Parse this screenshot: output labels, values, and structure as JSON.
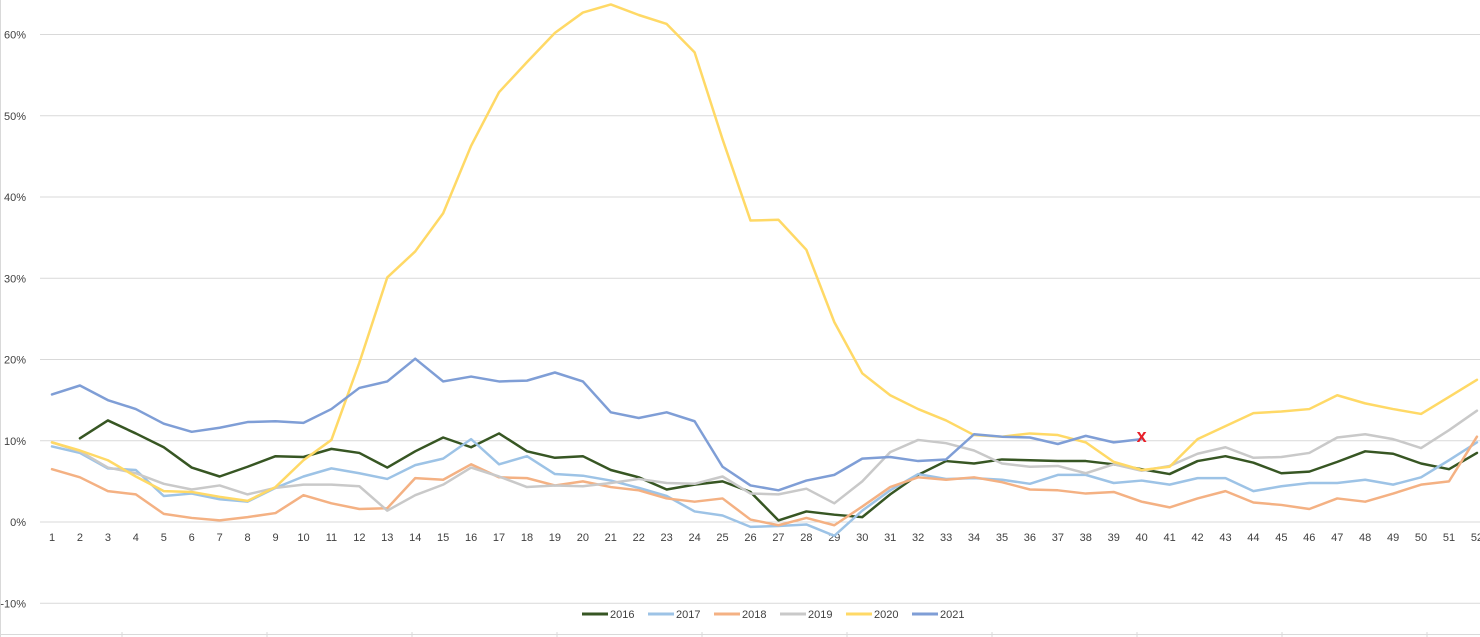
{
  "chart_data": {
    "type": "line",
    "x": [
      1,
      2,
      3,
      4,
      5,
      6,
      7,
      8,
      9,
      10,
      11,
      12,
      13,
      14,
      15,
      16,
      17,
      18,
      19,
      20,
      21,
      22,
      23,
      24,
      25,
      26,
      27,
      28,
      29,
      30,
      31,
      32,
      33,
      34,
      35,
      36,
      37,
      38,
      39,
      40,
      41,
      42,
      43,
      44,
      45,
      46,
      47,
      48,
      49,
      50,
      51,
      52
    ],
    "x_tick_labels": [
      "1",
      "2",
      "3",
      "4",
      "5",
      "6",
      "7",
      "8",
      "9",
      "10",
      "11",
      "12",
      "13",
      "14",
      "15",
      "16",
      "17",
      "18",
      "19",
      "20",
      "21",
      "22",
      "23",
      "24",
      "25",
      "26",
      "27",
      "28",
      "29",
      "30",
      "31",
      "32",
      "33",
      "34",
      "35",
      "36",
      "37",
      "38",
      "39",
      "40",
      "41",
      "42",
      "43",
      "44",
      "45",
      "46",
      "47",
      "48",
      "49",
      "50",
      "51",
      "52"
    ],
    "ylim": [
      -10,
      63
    ],
    "y_ticks": [
      -10,
      0,
      10,
      20,
      30,
      40,
      50,
      60
    ],
    "y_tick_labels": [
      "-10%",
      "0%",
      "10%",
      "20%",
      "30%",
      "40%",
      "50%",
      "60%"
    ],
    "grid": "horizontal",
    "legend_position": "bottom",
    "series": [
      {
        "name": "2016",
        "color": "#375623",
        "values": [
          null,
          10.3,
          12.5,
          10.9,
          9.2,
          6.7,
          5.6,
          6.8,
          8.1,
          8.0,
          9.0,
          8.5,
          6.7,
          8.7,
          10.4,
          9.2,
          10.9,
          8.7,
          7.9,
          8.1,
          6.4,
          5.5,
          4.0,
          4.6,
          5.0,
          3.7,
          0.2,
          1.3,
          0.9,
          0.6,
          3.4,
          5.8,
          7.5,
          7.2,
          7.7,
          7.6,
          7.5,
          7.5,
          7.1,
          6.5,
          5.9,
          7.5,
          8.1,
          7.3,
          6.0,
          6.2,
          7.4,
          8.7,
          8.4,
          7.2,
          6.5,
          8.5
        ]
      },
      {
        "name": "2017",
        "color": "#9dc3e6",
        "values": [
          9.3,
          8.5,
          6.6,
          6.4,
          3.2,
          3.5,
          2.8,
          2.5,
          4.2,
          5.6,
          6.6,
          6.0,
          5.3,
          7.0,
          7.8,
          10.2,
          7.1,
          8.1,
          5.9,
          5.7,
          5.1,
          4.2,
          3.2,
          1.3,
          0.8,
          -0.6,
          -0.5,
          -0.3,
          -1.7,
          1.4,
          3.9,
          5.9,
          5.3,
          5.4,
          5.2,
          4.7,
          5.8,
          5.8,
          4.8,
          5.1,
          4.6,
          5.4,
          5.4,
          3.8,
          4.4,
          4.8,
          4.8,
          5.2,
          4.6,
          5.5,
          7.6,
          9.8
        ]
      },
      {
        "name": "2018",
        "color": "#f4b183",
        "values": [
          6.5,
          5.5,
          3.8,
          3.4,
          1.0,
          0.5,
          0.2,
          0.6,
          1.1,
          3.3,
          2.3,
          1.6,
          1.7,
          5.4,
          5.2,
          7.1,
          5.5,
          5.4,
          4.5,
          5.0,
          4.3,
          3.9,
          2.9,
          2.5,
          2.9,
          0.3,
          -0.4,
          0.5,
          -0.4,
          1.9,
          4.3,
          5.5,
          5.2,
          5.5,
          4.9,
          4.0,
          3.9,
          3.5,
          3.7,
          2.5,
          1.8,
          2.9,
          3.8,
          2.4,
          2.1,
          1.6,
          2.9,
          2.5,
          3.5,
          4.6,
          5.0,
          10.5
        ]
      },
      {
        "name": "2019",
        "color": "#c9c9c9",
        "values": [
          9.8,
          8.7,
          6.7,
          6.0,
          4.7,
          4.0,
          4.5,
          3.4,
          4.2,
          4.6,
          4.6,
          4.4,
          1.4,
          3.3,
          4.6,
          6.7,
          5.6,
          4.3,
          4.5,
          4.4,
          4.8,
          5.3,
          4.8,
          4.7,
          5.6,
          3.5,
          3.4,
          4.1,
          2.3,
          5.0,
          8.6,
          10.1,
          9.7,
          8.8,
          7.2,
          6.8,
          6.9,
          6.0,
          7.1,
          6.3,
          6.9,
          8.4,
          9.2,
          7.9,
          8.0,
          8.5,
          10.4,
          10.8,
          10.2,
          9.1,
          11.3,
          13.7
        ]
      },
      {
        "name": "2020",
        "color": "#ffd966",
        "values": [
          9.8,
          8.8,
          7.6,
          5.6,
          3.8,
          3.7,
          3.1,
          2.6,
          4.3,
          7.6,
          10.1,
          19.6,
          30.1,
          33.3,
          38.0,
          46.3,
          52.9,
          56.6,
          60.2,
          62.7,
          63.7,
          62.4,
          61.3,
          57.8,
          47.1,
          37.1,
          37.2,
          33.5,
          24.6,
          18.3,
          15.6,
          13.9,
          12.5,
          10.7,
          10.5,
          10.9,
          10.7,
          9.8,
          7.4,
          6.4,
          6.8,
          10.2,
          11.8,
          13.4,
          13.6,
          13.9,
          15.6,
          14.6,
          13.9,
          13.3,
          15.4,
          17.5
        ]
      },
      {
        "name": "2021",
        "color": "#7f9ed6",
        "values": [
          15.7,
          16.8,
          15.0,
          13.9,
          12.1,
          11.1,
          11.6,
          12.3,
          12.4,
          12.2,
          13.9,
          16.5,
          17.3,
          20.1,
          17.3,
          17.9,
          17.3,
          17.4,
          18.4,
          17.3,
          13.5,
          12.8,
          13.5,
          12.4,
          6.8,
          4.5,
          3.9,
          5.1,
          5.8,
          7.8,
          8.0,
          7.5,
          7.7,
          10.8,
          10.5,
          10.4,
          9.6,
          10.6,
          9.8,
          10.2,
          null,
          null,
          null,
          null,
          null,
          null,
          null,
          null,
          null,
          null,
          null,
          null
        ]
      }
    ],
    "annotation": {
      "text": "x",
      "x": 40,
      "y": 10.6,
      "color": "#e8202a"
    }
  }
}
